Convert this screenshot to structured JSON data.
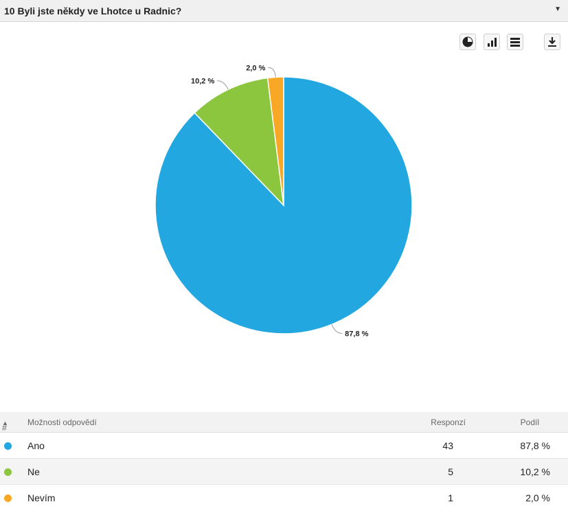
{
  "question": {
    "title": "10 Byli jste někdy ve Lhotce u Radnic?",
    "menu_icon": "caret-down-icon"
  },
  "toolbar": {
    "icons": [
      "pie-chart-icon",
      "bar-chart-icon",
      "table-icon",
      "download-icon"
    ]
  },
  "chart_data": {
    "type": "pie",
    "title": "",
    "slices": [
      {
        "label": "Ano",
        "value": 87.8,
        "display": "87,8 %",
        "color": "#22a7e0"
      },
      {
        "label": "Ne",
        "value": 10.2,
        "display": "10,2 %",
        "color": "#8cc63f"
      },
      {
        "label": "Nevím",
        "value": 2.0,
        "display": "2,0 %",
        "color": "#f9a825"
      }
    ]
  },
  "table": {
    "headers": {
      "num": "#",
      "option": "Možnosti odpovědí",
      "responses": "Responzí",
      "share": "Podíl"
    },
    "rows": [
      {
        "label": "Ano",
        "responses": "43",
        "share": "87,8 %",
        "color": "#22a7e0"
      },
      {
        "label": "Ne",
        "responses": "5",
        "share": "10,2 %",
        "color": "#8cc63f"
      },
      {
        "label": "Nevím",
        "responses": "1",
        "share": "2,0 %",
        "color": "#f9a825"
      }
    ]
  }
}
